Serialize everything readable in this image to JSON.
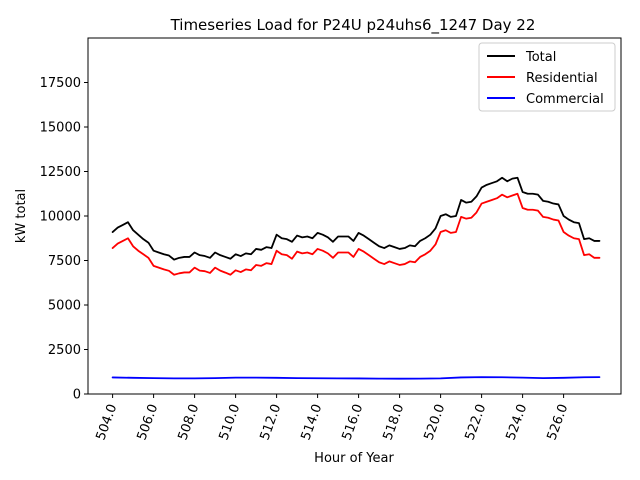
{
  "chart_data": {
    "type": "line",
    "title": "Timeseries Load for P24U p24uhs6_1247  Day 22",
    "xlabel": "Hour of Year",
    "ylabel": "kW total",
    "xlim": [
      502.8,
      528.8
    ],
    "ylim": [
      0,
      20000
    ],
    "x_ticks": [
      504,
      506,
      508,
      510,
      512,
      514,
      516,
      518,
      520,
      522,
      524,
      526
    ],
    "x_tick_labels": [
      "504.0",
      "506.0",
      "508.0",
      "510.0",
      "512.0",
      "514.0",
      "516.0",
      "518.0",
      "520.0",
      "522.0",
      "524.0",
      "526.0"
    ],
    "y_ticks": [
      0,
      2500,
      5000,
      7500,
      10000,
      12500,
      15000,
      17500
    ],
    "y_tick_labels": [
      "0",
      "2500",
      "5000",
      "7500",
      "10000",
      "12500",
      "15000",
      "17500"
    ],
    "legend_position": "top-right",
    "series": [
      {
        "name": "Total",
        "color": "#000000",
        "points": [
          [
            504.0,
            9100
          ],
          [
            504.25,
            9350
          ],
          [
            504.5,
            9500
          ],
          [
            504.75,
            9650
          ],
          [
            505.0,
            9200
          ],
          [
            505.25,
            8950
          ],
          [
            505.5,
            8700
          ],
          [
            505.75,
            8500
          ],
          [
            506.0,
            8050
          ],
          [
            506.25,
            7950
          ],
          [
            506.5,
            7850
          ],
          [
            506.75,
            7780
          ],
          [
            507.0,
            7550
          ],
          [
            507.25,
            7650
          ],
          [
            507.5,
            7700
          ],
          [
            507.75,
            7700
          ],
          [
            508.0,
            7950
          ],
          [
            508.25,
            7800
          ],
          [
            508.5,
            7750
          ],
          [
            508.75,
            7650
          ],
          [
            509.0,
            7950
          ],
          [
            509.25,
            7800
          ],
          [
            509.5,
            7700
          ],
          [
            509.75,
            7600
          ],
          [
            510.0,
            7850
          ],
          [
            510.25,
            7750
          ],
          [
            510.5,
            7900
          ],
          [
            510.75,
            7850
          ],
          [
            511.0,
            8150
          ],
          [
            511.25,
            8100
          ],
          [
            511.5,
            8250
          ],
          [
            511.75,
            8200
          ],
          [
            512.0,
            8950
          ],
          [
            512.25,
            8750
          ],
          [
            512.5,
            8700
          ],
          [
            512.75,
            8550
          ],
          [
            513.0,
            8900
          ],
          [
            513.25,
            8800
          ],
          [
            513.5,
            8850
          ],
          [
            513.75,
            8750
          ],
          [
            514.0,
            9050
          ],
          [
            514.25,
            8950
          ],
          [
            514.5,
            8800
          ],
          [
            514.75,
            8550
          ],
          [
            515.0,
            8850
          ],
          [
            515.25,
            8850
          ],
          [
            515.5,
            8850
          ],
          [
            515.75,
            8600
          ],
          [
            516.0,
            9050
          ],
          [
            516.25,
            8900
          ],
          [
            516.5,
            8700
          ],
          [
            516.75,
            8500
          ],
          [
            517.0,
            8300
          ],
          [
            517.25,
            8200
          ],
          [
            517.5,
            8350
          ],
          [
            517.75,
            8250
          ],
          [
            518.0,
            8150
          ],
          [
            518.25,
            8200
          ],
          [
            518.5,
            8350
          ],
          [
            518.75,
            8300
          ],
          [
            519.0,
            8600
          ],
          [
            519.25,
            8750
          ],
          [
            519.5,
            8950
          ],
          [
            519.75,
            9300
          ],
          [
            520.0,
            10000
          ],
          [
            520.25,
            10100
          ],
          [
            520.5,
            9950
          ],
          [
            520.75,
            10000
          ],
          [
            521.0,
            10900
          ],
          [
            521.25,
            10750
          ],
          [
            521.5,
            10800
          ],
          [
            521.75,
            11100
          ],
          [
            522.0,
            11600
          ],
          [
            522.25,
            11750
          ],
          [
            522.5,
            11850
          ],
          [
            522.75,
            11950
          ],
          [
            523.0,
            12150
          ],
          [
            523.25,
            11950
          ],
          [
            523.5,
            12100
          ],
          [
            523.75,
            12150
          ],
          [
            524.0,
            11350
          ],
          [
            524.25,
            11250
          ],
          [
            524.5,
            11250
          ],
          [
            524.75,
            11200
          ],
          [
            525.0,
            10850
          ],
          [
            525.25,
            10800
          ],
          [
            525.5,
            10700
          ],
          [
            525.75,
            10650
          ],
          [
            526.0,
            10000
          ],
          [
            526.25,
            9800
          ],
          [
            526.5,
            9650
          ],
          [
            526.75,
            9600
          ],
          [
            527.0,
            8700
          ],
          [
            527.25,
            8750
          ],
          [
            527.5,
            8600
          ],
          [
            527.75,
            8600
          ]
        ]
      },
      {
        "name": "Residential",
        "color": "#ff0000",
        "points": [
          [
            504.0,
            8200
          ],
          [
            504.25,
            8450
          ],
          [
            504.5,
            8600
          ],
          [
            504.75,
            8750
          ],
          [
            505.0,
            8300
          ],
          [
            505.25,
            8050
          ],
          [
            505.5,
            7850
          ],
          [
            505.75,
            7650
          ],
          [
            506.0,
            7200
          ],
          [
            506.25,
            7100
          ],
          [
            506.5,
            7000
          ],
          [
            506.75,
            6920
          ],
          [
            507.0,
            6700
          ],
          [
            507.25,
            6780
          ],
          [
            507.5,
            6830
          ],
          [
            507.75,
            6830
          ],
          [
            508.0,
            7100
          ],
          [
            508.25,
            6930
          ],
          [
            508.5,
            6900
          ],
          [
            508.75,
            6800
          ],
          [
            509.0,
            7100
          ],
          [
            509.25,
            6930
          ],
          [
            509.5,
            6820
          ],
          [
            509.75,
            6700
          ],
          [
            510.0,
            6950
          ],
          [
            510.25,
            6850
          ],
          [
            510.5,
            7000
          ],
          [
            510.75,
            6950
          ],
          [
            511.0,
            7250
          ],
          [
            511.25,
            7200
          ],
          [
            511.5,
            7350
          ],
          [
            511.75,
            7300
          ],
          [
            512.0,
            8050
          ],
          [
            512.25,
            7850
          ],
          [
            512.5,
            7800
          ],
          [
            512.75,
            7600
          ],
          [
            513.0,
            8000
          ],
          [
            513.25,
            7900
          ],
          [
            513.5,
            7950
          ],
          [
            513.75,
            7850
          ],
          [
            514.0,
            8150
          ],
          [
            514.25,
            8050
          ],
          [
            514.5,
            7900
          ],
          [
            514.75,
            7650
          ],
          [
            515.0,
            7950
          ],
          [
            515.25,
            7950
          ],
          [
            515.5,
            7950
          ],
          [
            515.75,
            7700
          ],
          [
            516.0,
            8150
          ],
          [
            516.25,
            8000
          ],
          [
            516.5,
            7800
          ],
          [
            516.75,
            7600
          ],
          [
            517.0,
            7400
          ],
          [
            517.25,
            7300
          ],
          [
            517.5,
            7450
          ],
          [
            517.75,
            7350
          ],
          [
            518.0,
            7250
          ],
          [
            518.25,
            7300
          ],
          [
            518.5,
            7450
          ],
          [
            518.75,
            7400
          ],
          [
            519.0,
            7700
          ],
          [
            519.25,
            7850
          ],
          [
            519.5,
            8050
          ],
          [
            519.75,
            8400
          ],
          [
            520.0,
            9100
          ],
          [
            520.25,
            9200
          ],
          [
            520.5,
            9050
          ],
          [
            520.75,
            9100
          ],
          [
            521.0,
            9950
          ],
          [
            521.25,
            9850
          ],
          [
            521.5,
            9900
          ],
          [
            521.75,
            10200
          ],
          [
            522.0,
            10700
          ],
          [
            522.25,
            10800
          ],
          [
            522.5,
            10900
          ],
          [
            522.75,
            11000
          ],
          [
            523.0,
            11200
          ],
          [
            523.25,
            11050
          ],
          [
            523.5,
            11150
          ],
          [
            523.75,
            11250
          ],
          [
            524.0,
            10450
          ],
          [
            524.25,
            10350
          ],
          [
            524.5,
            10350
          ],
          [
            524.75,
            10300
          ],
          [
            525.0,
            9950
          ],
          [
            525.25,
            9900
          ],
          [
            525.5,
            9800
          ],
          [
            525.75,
            9750
          ],
          [
            526.0,
            9100
          ],
          [
            526.25,
            8900
          ],
          [
            526.5,
            8750
          ],
          [
            526.75,
            8700
          ],
          [
            527.0,
            7800
          ],
          [
            527.25,
            7850
          ],
          [
            527.5,
            7650
          ],
          [
            527.75,
            7650
          ]
        ]
      },
      {
        "name": "Commercial",
        "color": "#0000ff",
        "points": [
          [
            504.0,
            930
          ],
          [
            505.0,
            910
          ],
          [
            506.0,
            890
          ],
          [
            507.0,
            880
          ],
          [
            508.0,
            880
          ],
          [
            509.0,
            890
          ],
          [
            510.0,
            920
          ],
          [
            511.0,
            920
          ],
          [
            512.0,
            910
          ],
          [
            513.0,
            890
          ],
          [
            514.0,
            885
          ],
          [
            515.0,
            880
          ],
          [
            516.0,
            875
          ],
          [
            517.0,
            865
          ],
          [
            518.0,
            860
          ],
          [
            519.0,
            865
          ],
          [
            520.0,
            880
          ],
          [
            521.0,
            930
          ],
          [
            522.0,
            950
          ],
          [
            523.0,
            940
          ],
          [
            524.0,
            920
          ],
          [
            525.0,
            890
          ],
          [
            526.0,
            910
          ],
          [
            527.0,
            940
          ],
          [
            527.75,
            950
          ]
        ]
      }
    ]
  }
}
